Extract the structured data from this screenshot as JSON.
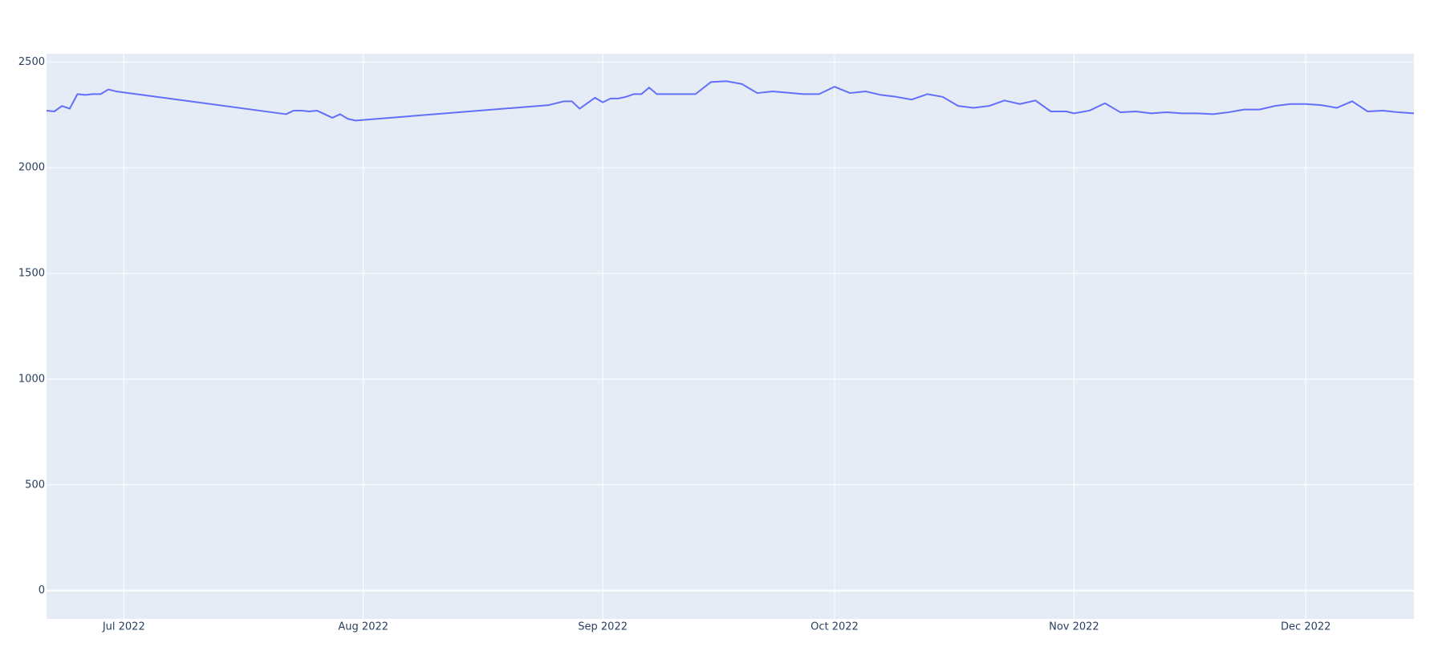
{
  "chart_data": {
    "type": "line",
    "x": [
      "2022-06-21",
      "2022-06-22",
      "2022-06-23",
      "2022-06-24",
      "2022-06-25",
      "2022-06-26",
      "2022-06-27",
      "2022-06-28",
      "2022-06-29",
      "2022-06-30",
      "2022-07-22",
      "2022-07-23",
      "2022-07-24",
      "2022-07-25",
      "2022-07-26",
      "2022-07-28",
      "2022-07-29",
      "2022-07-30",
      "2022-07-31",
      "2022-08-25",
      "2022-08-27",
      "2022-08-28",
      "2022-08-29",
      "2022-08-30",
      "2022-08-31",
      "2022-09-01",
      "2022-09-02",
      "2022-09-03",
      "2022-09-04",
      "2022-09-05",
      "2022-09-06",
      "2022-09-07",
      "2022-09-08",
      "2022-09-13",
      "2022-09-15",
      "2022-09-17",
      "2022-09-19",
      "2022-09-21",
      "2022-09-23",
      "2022-09-27",
      "2022-09-29",
      "2022-10-01",
      "2022-10-03",
      "2022-10-05",
      "2022-10-07",
      "2022-10-09",
      "2022-10-11",
      "2022-10-13",
      "2022-10-15",
      "2022-10-17",
      "2022-10-19",
      "2022-10-21",
      "2022-10-23",
      "2022-10-25",
      "2022-10-27",
      "2022-10-29",
      "2022-10-31",
      "2022-11-01",
      "2022-11-03",
      "2022-11-05",
      "2022-11-07",
      "2022-11-09",
      "2022-11-11",
      "2022-11-13",
      "2022-11-15",
      "2022-11-17",
      "2022-11-19",
      "2022-11-21",
      "2022-11-23",
      "2022-11-25",
      "2022-11-27",
      "2022-11-29",
      "2022-12-01",
      "2022-12-03",
      "2022-12-05",
      "2022-12-07",
      "2022-12-09",
      "2022-12-11",
      "2022-12-13",
      "2022-12-15"
    ],
    "series": [
      {
        "color": "#636efa",
        "values": [
          2270,
          2266,
          2292,
          2279,
          2348,
          2344,
          2348,
          2348,
          2370,
          2361,
          2253,
          2270,
          2270,
          2266,
          2270,
          2236,
          2253,
          2231,
          2223,
          2296,
          2314,
          2314,
          2279,
          2305,
          2331,
          2309,
          2327,
          2327,
          2335,
          2348,
          2348,
          2379,
          2348,
          2348,
          2405,
          2409,
          2396,
          2353,
          2361,
          2348,
          2348,
          2383,
          2353,
          2361,
          2344,
          2335,
          2322,
          2348,
          2335,
          2292,
          2283,
          2292,
          2318,
          2301,
          2318,
          2266,
          2266,
          2257,
          2270,
          2305,
          2262,
          2266,
          2257,
          2262,
          2257,
          2257,
          2253,
          2262,
          2275,
          2275,
          2292,
          2301,
          2301,
          2296,
          2283,
          2314,
          2266,
          2270,
          2262,
          2257
        ]
      }
    ],
    "xlim": [
      "2022-06-21",
      "2022-12-15"
    ],
    "xticks": [
      {
        "value": "2022-07-01",
        "label": "Jul 2022"
      },
      {
        "value": "2022-08-01",
        "label": "Aug 2022"
      },
      {
        "value": "2022-09-01",
        "label": "Sep 2022"
      },
      {
        "value": "2022-10-01",
        "label": "Oct 2022"
      },
      {
        "value": "2022-11-01",
        "label": "Nov 2022"
      },
      {
        "value": "2022-12-01",
        "label": "Dec 2022"
      }
    ],
    "ylim": [
      -134,
      2539
    ],
    "yticks": [
      0,
      500,
      1000,
      1500,
      2000,
      2500
    ],
    "grid": true
  }
}
